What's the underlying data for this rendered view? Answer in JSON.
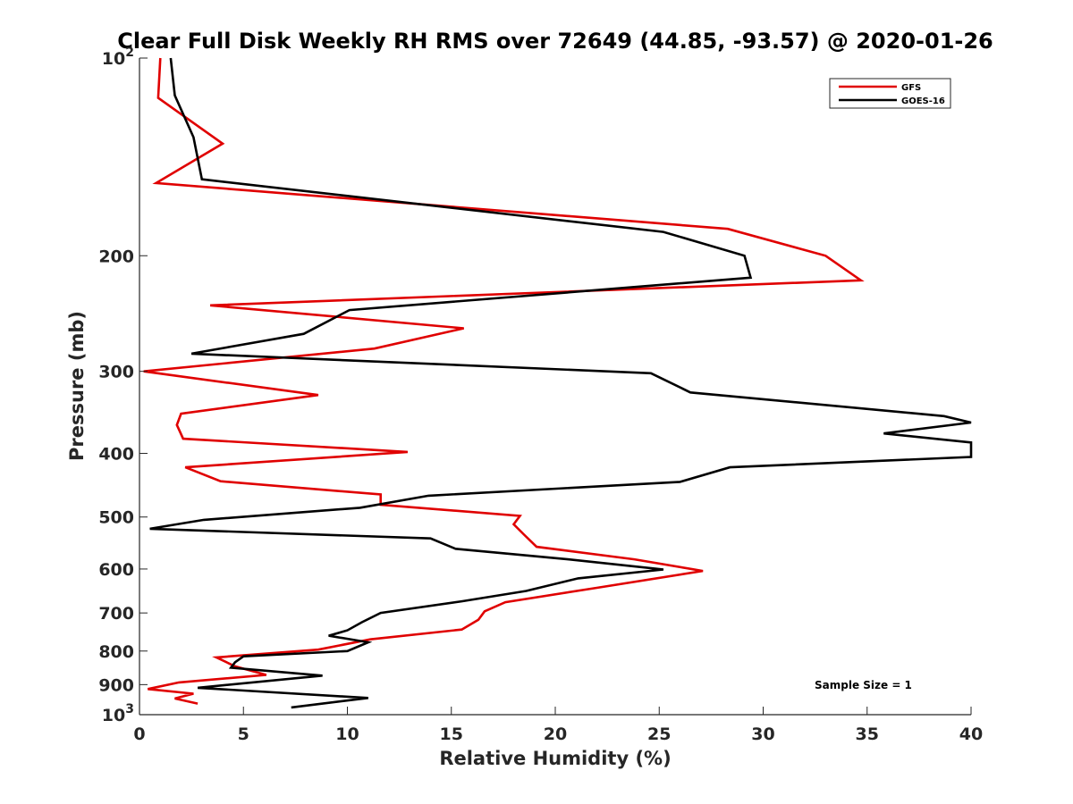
{
  "chart_data": {
    "type": "line",
    "title": "Clear Full Disk Weekly RH RMS over 72649 (44.85, -93.57) @ 2020-01-26",
    "xlabel": "Relative Humidity (%)",
    "ylabel": "Pressure (mb)",
    "xlim": [
      0,
      40
    ],
    "ylim": [
      100,
      1000
    ],
    "y_scale": "log",
    "y_reversed": true,
    "x_ticks": [
      "0",
      "5",
      "10",
      "15",
      "20",
      "25",
      "30",
      "35",
      "40"
    ],
    "y_ticks": [
      {
        "value": 100,
        "label": "10",
        "sup": "2"
      },
      {
        "value": 200,
        "label": "200",
        "sup": ""
      },
      {
        "value": 300,
        "label": "300",
        "sup": ""
      },
      {
        "value": 400,
        "label": "400",
        "sup": ""
      },
      {
        "value": 500,
        "label": "500",
        "sup": ""
      },
      {
        "value": 600,
        "label": "600",
        "sup": ""
      },
      {
        "value": 700,
        "label": "700",
        "sup": ""
      },
      {
        "value": 800,
        "label": "800",
        "sup": ""
      },
      {
        "value": 900,
        "label": "900",
        "sup": ""
      },
      {
        "value": 1000,
        "label": "10",
        "sup": "3"
      }
    ],
    "grid": false,
    "legend_position": "top-right",
    "annotation": "Sample Size = 1",
    "series": [
      {
        "name": "GFS",
        "color": "#e00000",
        "points": [
          [
            1.0,
            100
          ],
          [
            0.9,
            115
          ],
          [
            4.0,
            135
          ],
          [
            0.8,
            155
          ],
          [
            28.3,
            182
          ],
          [
            33.0,
            200
          ],
          [
            34.7,
            218
          ],
          [
            3.4,
            238
          ],
          [
            15.6,
            258
          ],
          [
            11.3,
            277
          ],
          [
            0.2,
            300
          ],
          [
            8.6,
            326
          ],
          [
            2.0,
            348
          ],
          [
            1.8,
            362
          ],
          [
            2.1,
            380
          ],
          [
            12.9,
            398
          ],
          [
            2.2,
            420
          ],
          [
            3.9,
            441
          ],
          [
            11.6,
            462
          ],
          [
            11.6,
            479
          ],
          [
            18.3,
            498
          ],
          [
            18.0,
            513
          ],
          [
            18.5,
            532
          ],
          [
            19.1,
            555
          ],
          [
            23.8,
            580
          ],
          [
            27.1,
            604
          ],
          [
            22.0,
            641
          ],
          [
            17.6,
            674
          ],
          [
            16.6,
            696
          ],
          [
            16.3,
            717
          ],
          [
            15.5,
            742
          ],
          [
            11.1,
            768
          ],
          [
            8.6,
            796
          ],
          [
            3.7,
            818
          ],
          [
            4.6,
            844
          ],
          [
            6.1,
            870
          ],
          [
            1.9,
            893
          ],
          [
            0.4,
            914
          ],
          [
            2.6,
            929
          ],
          [
            1.7,
            945
          ],
          [
            2.8,
            962
          ]
        ]
      },
      {
        "name": "GOES-16",
        "color": "#000000",
        "points": [
          [
            1.5,
            100
          ],
          [
            1.7,
            114
          ],
          [
            2.6,
            132
          ],
          [
            3.0,
            153
          ],
          [
            25.2,
            184
          ],
          [
            29.1,
            200
          ],
          [
            29.4,
            216
          ],
          [
            10.1,
            242
          ],
          [
            7.9,
            263
          ],
          [
            2.5,
            282
          ],
          [
            24.6,
            302
          ],
          [
            26.5,
            323
          ],
          [
            38.7,
            351
          ],
          [
            40.0,
            359
          ],
          [
            35.8,
            373
          ],
          [
            40.0,
            385
          ],
          [
            40.0,
            396
          ],
          [
            40.0,
            405
          ],
          [
            28.4,
            420
          ],
          [
            26.0,
            442
          ],
          [
            13.9,
            464
          ],
          [
            10.6,
            484
          ],
          [
            3.1,
            505
          ],
          [
            0.5,
            521
          ],
          [
            14.0,
            539
          ],
          [
            15.2,
            559
          ],
          [
            20.6,
            580
          ],
          [
            25.2,
            601
          ],
          [
            21.1,
            620
          ],
          [
            18.6,
            648
          ],
          [
            15.5,
            672
          ],
          [
            11.6,
            700
          ],
          [
            10.7,
            723
          ],
          [
            10.0,
            744
          ],
          [
            9.1,
            758
          ],
          [
            11.0,
            776
          ],
          [
            10.0,
            800
          ],
          [
            5.0,
            815
          ],
          [
            4.6,
            832
          ],
          [
            4.4,
            848
          ],
          [
            8.8,
            872
          ],
          [
            2.8,
            910
          ],
          [
            11.0,
            943
          ],
          [
            7.3,
            975
          ]
        ]
      }
    ]
  }
}
